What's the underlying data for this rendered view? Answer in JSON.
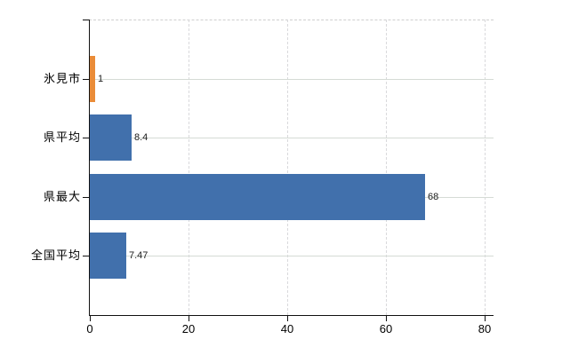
{
  "chart_data": {
    "type": "bar",
    "orientation": "horizontal",
    "title": "",
    "categories": [
      "氷見市",
      "県平均",
      "県最大",
      "全国平均"
    ],
    "series": [
      {
        "name": "values",
        "values": [
          1,
          8.4,
          68,
          7.47
        ]
      }
    ],
    "value_labels": [
      "1",
      "8.4",
      "68",
      "7.47"
    ],
    "bar_colors": [
      "#EA8C38",
      "#4170AC",
      "#4170AC",
      "#4170AC"
    ],
    "xlim": [
      0,
      80
    ],
    "x_tick_labels": [
      "0",
      "20",
      "40",
      "60",
      "80"
    ],
    "x_tick_values": [
      0,
      20,
      40,
      60,
      80
    ],
    "grid": true,
    "legend_position": "none",
    "colors": {
      "highlight_bar": "#EA8C38",
      "default_bar": "#4170AC",
      "horizontal_grid": "#d5dbd5",
      "vertical_grid": "#d9d9dc",
      "axis": "#111111",
      "background": "#ffffff",
      "value_label_text": "#1c1c1c"
    }
  }
}
